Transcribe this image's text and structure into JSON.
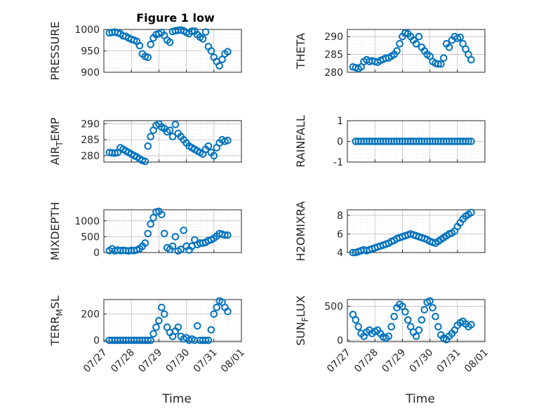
{
  "figure": {
    "title": "Figure 1 low",
    "marker_color": "#0072BD",
    "x_ticks": [
      "07/27",
      "07/28",
      "07/29",
      "07/30",
      "07/31",
      "08/01"
    ],
    "x_label": "Time"
  },
  "chart_data": [
    {
      "type": "scatter",
      "name": "PRESSURE",
      "title": "Figure 1 low",
      "ylabel": "PRESSURE",
      "ylim": [
        900,
        1000
      ],
      "yticks": [
        900,
        950,
        1000
      ],
      "xlim": [
        0,
        5
      ],
      "grid": true,
      "x": [
        0.2,
        0.3,
        0.4,
        0.5,
        0.6,
        0.7,
        0.8,
        0.9,
        1.0,
        1.1,
        1.2,
        1.3,
        1.4,
        1.5,
        1.6,
        1.7,
        1.8,
        1.9,
        2.0,
        2.1,
        2.2,
        2.3,
        2.4,
        2.5,
        2.6,
        2.7,
        2.8,
        2.9,
        3.0,
        3.1,
        3.2,
        3.3,
        3.4,
        3.5,
        3.6,
        3.7,
        3.8,
        3.9,
        4.0,
        4.1,
        4.2,
        4.3,
        4.4,
        4.5
      ],
      "y": [
        992,
        993,
        994,
        992,
        990,
        985,
        984,
        980,
        977,
        975,
        972,
        962,
        943,
        937,
        935,
        965,
        980,
        988,
        990,
        993,
        986,
        975,
        970,
        995,
        997,
        998,
        999,
        997,
        993,
        990,
        996,
        996,
        988,
        982,
        978,
        994,
        960,
        950,
        935,
        925,
        915,
        930,
        943,
        948
      ]
    },
    {
      "type": "scatter",
      "name": "THETA",
      "ylabel": "THETA",
      "ylim": [
        280,
        292
      ],
      "yticks": [
        280,
        285,
        290
      ],
      "xlim": [
        0,
        5
      ],
      "grid": true,
      "x": [
        0.2,
        0.3,
        0.4,
        0.5,
        0.6,
        0.7,
        0.8,
        0.9,
        1.0,
        1.1,
        1.2,
        1.3,
        1.4,
        1.5,
        1.6,
        1.7,
        1.8,
        1.9,
        2.0,
        2.1,
        2.2,
        2.3,
        2.4,
        2.5,
        2.6,
        2.7,
        2.8,
        2.9,
        3.0,
        3.1,
        3.2,
        3.3,
        3.4,
        3.5,
        3.6,
        3.7,
        3.8,
        3.9,
        4.0,
        4.1,
        4.2,
        4.3,
        4.4,
        4.5
      ],
      "y": [
        281.5,
        281.3,
        281,
        281.5,
        283,
        283.5,
        283,
        283.2,
        283,
        282.8,
        283.3,
        283.6,
        284,
        284,
        284.5,
        285,
        286,
        288,
        290,
        291,
        290.8,
        290,
        289,
        288,
        290,
        287,
        286,
        285,
        284.5,
        283,
        282.5,
        282.3,
        282.3,
        284,
        288,
        287,
        289,
        290,
        289.5,
        289.8,
        288,
        286.5,
        285,
        283.5
      ]
    },
    {
      "type": "scatter",
      "name": "AIR_TEMP",
      "ylabel": "AIR_TEMP",
      "ylim": [
        278,
        291
      ],
      "yticks": [
        280,
        285,
        290
      ],
      "xlim": [
        0,
        5
      ],
      "grid": true,
      "x": [
        0.2,
        0.3,
        0.4,
        0.5,
        0.6,
        0.7,
        0.8,
        0.9,
        1.0,
        1.1,
        1.2,
        1.3,
        1.4,
        1.5,
        1.6,
        1.7,
        1.8,
        1.9,
        2.0,
        2.1,
        2.2,
        2.3,
        2.4,
        2.5,
        2.6,
        2.7,
        2.8,
        2.9,
        3.0,
        3.1,
        3.2,
        3.3,
        3.4,
        3.5,
        3.6,
        3.7,
        3.8,
        3.9,
        4.0,
        4.1,
        4.2,
        4.3,
        4.4,
        4.5
      ],
      "y": [
        281,
        280.9,
        280.8,
        281,
        282.5,
        282,
        281.5,
        281,
        280.5,
        280,
        279.6,
        279,
        278.5,
        278.2,
        283,
        286,
        288,
        289.5,
        290,
        289,
        288.5,
        287.5,
        288,
        286,
        289.8,
        287,
        286,
        285,
        284,
        283,
        282.5,
        282,
        281.5,
        281,
        280.5,
        282,
        283,
        281,
        280,
        282.5,
        284,
        285,
        284.5,
        284.8
      ]
    },
    {
      "type": "scatter",
      "name": "RAINFALL",
      "ylabel": "RAINFALL",
      "ylim": [
        -1,
        1
      ],
      "yticks": [
        -1,
        0,
        1
      ],
      "xlim": [
        0,
        5
      ],
      "grid": true,
      "x": [
        0.3,
        0.4,
        0.5,
        0.6,
        0.7,
        0.8,
        0.9,
        1.0,
        1.1,
        1.2,
        1.3,
        1.4,
        1.5,
        1.6,
        1.7,
        1.8,
        1.9,
        2.0,
        2.1,
        2.2,
        2.3,
        2.4,
        2.5,
        2.6,
        2.7,
        2.8,
        2.9,
        3.0,
        3.1,
        3.2,
        3.3,
        3.4,
        3.5,
        3.6,
        3.7,
        3.8,
        3.9,
        4.0,
        4.1,
        4.2,
        4.3,
        4.4,
        4.5
      ],
      "y": [
        0,
        0,
        0,
        0,
        0,
        0,
        0,
        0,
        0,
        0,
        0,
        0,
        0,
        0,
        0,
        0,
        0,
        0,
        0,
        0,
        0,
        0,
        0,
        0,
        0,
        0,
        0,
        0,
        0,
        0,
        0,
        0,
        0,
        0,
        0,
        0,
        0,
        0,
        0,
        0,
        0,
        0,
        0
      ]
    },
    {
      "type": "scatter",
      "name": "MIXDEPTH",
      "ylabel": "MIXDEPTH",
      "ylim": [
        0,
        1350
      ],
      "yticks": [
        0,
        500,
        1000
      ],
      "xlim": [
        0,
        5
      ],
      "grid": true,
      "x": [
        0.2,
        0.3,
        0.4,
        0.5,
        0.6,
        0.7,
        0.8,
        0.9,
        1.0,
        1.1,
        1.2,
        1.3,
        1.4,
        1.5,
        1.6,
        1.7,
        1.8,
        1.9,
        2.0,
        2.1,
        2.2,
        2.3,
        2.4,
        2.5,
        2.6,
        2.7,
        2.8,
        2.9,
        3.0,
        3.1,
        3.2,
        3.3,
        3.4,
        3.5,
        3.6,
        3.7,
        3.8,
        3.9,
        4.0,
        4.1,
        4.2,
        4.3,
        4.4,
        4.5
      ],
      "y": [
        60,
        120,
        50,
        80,
        60,
        70,
        60,
        50,
        70,
        60,
        80,
        120,
        200,
        300,
        600,
        900,
        1100,
        1280,
        1300,
        1200,
        600,
        150,
        100,
        200,
        500,
        50,
        100,
        700,
        200,
        80,
        200,
        400,
        250,
        300,
        300,
        320,
        380,
        400,
        450,
        520,
        600,
        580,
        550,
        550
      ]
    },
    {
      "type": "scatter",
      "name": "H2OMIXRA",
      "ylabel": "H2OMIXRA",
      "ylim": [
        4,
        8.6
      ],
      "yticks": [
        4,
        6,
        8
      ],
      "xlim": [
        0,
        5
      ],
      "grid": true,
      "x": [
        0.2,
        0.3,
        0.4,
        0.5,
        0.6,
        0.7,
        0.8,
        0.9,
        1.0,
        1.1,
        1.2,
        1.3,
        1.4,
        1.5,
        1.6,
        1.7,
        1.8,
        1.9,
        2.0,
        2.1,
        2.2,
        2.3,
        2.4,
        2.5,
        2.6,
        2.7,
        2.8,
        2.9,
        3.0,
        3.1,
        3.2,
        3.3,
        3.4,
        3.5,
        3.6,
        3.7,
        3.8,
        3.9,
        4.0,
        4.1,
        4.2,
        4.3,
        4.4,
        4.5
      ],
      "y": [
        4.0,
        4.0,
        4.1,
        4.2,
        4.3,
        4.2,
        4.3,
        4.4,
        4.5,
        4.6,
        4.7,
        4.8,
        4.9,
        5.0,
        5.2,
        5.3,
        5.5,
        5.6,
        5.7,
        5.8,
        5.9,
        6.0,
        5.9,
        5.8,
        5.7,
        5.6,
        5.5,
        5.4,
        5.2,
        5.1,
        5.0,
        5.2,
        5.4,
        5.6,
        5.8,
        6.0,
        6.1,
        6.3,
        6.8,
        7.2,
        7.6,
        7.9,
        8.1,
        8.3
      ]
    },
    {
      "type": "scatter",
      "name": "TERR_MSL",
      "ylabel": "TERR_MSL",
      "ylim": [
        -10,
        310
      ],
      "yticks": [
        0,
        200
      ],
      "xlim": [
        0,
        5
      ],
      "grid": true,
      "x": [
        0.2,
        0.3,
        0.4,
        0.5,
        0.6,
        0.7,
        0.8,
        0.9,
        1.0,
        1.1,
        1.2,
        1.3,
        1.4,
        1.5,
        1.6,
        1.7,
        1.8,
        1.9,
        2.0,
        2.1,
        2.2,
        2.3,
        2.4,
        2.5,
        2.6,
        2.7,
        2.8,
        2.9,
        3.0,
        3.1,
        3.2,
        3.3,
        3.4,
        3.5,
        3.6,
        3.7,
        3.8,
        3.9,
        4.0,
        4.1,
        4.2,
        4.3,
        4.4,
        4.5
      ],
      "y": [
        0,
        0,
        0,
        0,
        0,
        0,
        0,
        0,
        0,
        0,
        0,
        0,
        0,
        0,
        0,
        0,
        50,
        100,
        150,
        250,
        200,
        100,
        60,
        30,
        70,
        100,
        30,
        10,
        20,
        0,
        10,
        0,
        110,
        0,
        0,
        0,
        0,
        80,
        200,
        250,
        300,
        290,
        250,
        220
      ]
    },
    {
      "type": "scatter",
      "name": "SUN_FLUX",
      "ylabel": "SUN_FLUX",
      "ylim": [
        -20,
        600
      ],
      "yticks": [
        0,
        500
      ],
      "xlim": [
        0,
        5
      ],
      "grid": true,
      "x": [
        0.2,
        0.3,
        0.4,
        0.5,
        0.6,
        0.7,
        0.8,
        0.9,
        1.0,
        1.1,
        1.2,
        1.3,
        1.4,
        1.5,
        1.6,
        1.7,
        1.8,
        1.9,
        2.0,
        2.1,
        2.2,
        2.3,
        2.4,
        2.5,
        2.6,
        2.7,
        2.8,
        2.9,
        3.0,
        3.1,
        3.2,
        3.3,
        3.4,
        3.5,
        3.6,
        3.7,
        3.8,
        3.9,
        4.0,
        4.1,
        4.2,
        4.3,
        4.4,
        4.5
      ],
      "y": [
        380,
        300,
        200,
        100,
        60,
        120,
        150,
        100,
        130,
        150,
        100,
        50,
        30,
        60,
        200,
        350,
        480,
        530,
        500,
        420,
        300,
        200,
        120,
        60,
        150,
        300,
        450,
        560,
        580,
        480,
        350,
        200,
        80,
        30,
        10,
        60,
        100,
        150,
        220,
        260,
        280,
        240,
        200,
        230
      ]
    }
  ],
  "labels": {
    "PRESSURE": "PRESSURE",
    "THETA": "THETA",
    "AIR_TEMP": {
      "main": "AIR",
      "sub": "T",
      "rest": "EMP"
    },
    "RAINFALL": "RAINFALL",
    "MIXDEPTH": "MIXDEPTH",
    "H2OMIXRA": "H2OMIXRA",
    "TERR_MSL": {
      "main": "TERR",
      "sub": "M",
      "rest": "SL"
    },
    "SUN_FLUX": {
      "main": "SUN",
      "sub": "F",
      "rest": "LUX"
    }
  }
}
